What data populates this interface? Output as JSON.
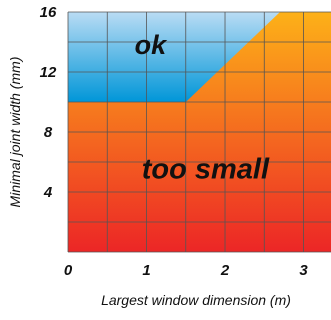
{
  "chart_data": {
    "type": "area",
    "xlabel": "Largest window dimension (m)",
    "ylabel": "Minimal joint width (mm)",
    "xlim": [
      0,
      3.35
    ],
    "ylim": [
      0,
      16
    ],
    "x_ticks": [
      0,
      1,
      2,
      3
    ],
    "y_ticks": [
      4,
      8,
      12,
      16
    ],
    "x_grid_step": 0.5,
    "y_grid_step": 2,
    "grid": true,
    "boundary": {
      "points": [
        [
          0,
          10
        ],
        [
          1.5,
          10
        ],
        [
          2.7,
          16
        ]
      ]
    },
    "regions": [
      {
        "label": "ok",
        "label_at": [
          1.05,
          13.2
        ],
        "colors": [
          "#0096d8",
          "#b9dcf4"
        ]
      },
      {
        "label": "too small",
        "label_at": [
          1.75,
          4.9
        ],
        "colors": [
          "#ec2626",
          "#fdb118"
        ]
      }
    ],
    "grid_color": "#555555"
  }
}
